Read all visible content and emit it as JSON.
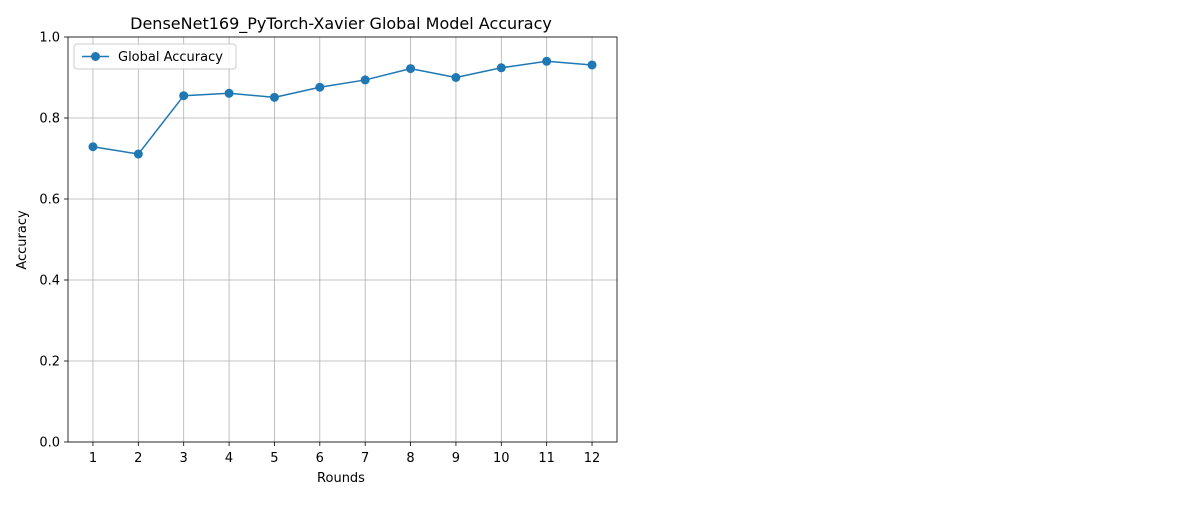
{
  "chart_data": {
    "type": "line",
    "title": "DenseNet169_PyTorch-Xavier Global Model Accuracy",
    "xlabel": "Rounds",
    "ylabel": "Accuracy",
    "x": [
      1,
      2,
      3,
      4,
      5,
      6,
      7,
      8,
      9,
      10,
      11,
      12
    ],
    "xticks": [
      "1",
      "2",
      "3",
      "4",
      "5",
      "6",
      "7",
      "8",
      "9",
      "10",
      "11",
      "12"
    ],
    "yticks": [
      "0.0",
      "0.2",
      "0.4",
      "0.6",
      "0.8",
      "1.0"
    ],
    "ylim": [
      0,
      1
    ],
    "grid": true,
    "legend_position": "upper-left",
    "series": [
      {
        "name": "Global Accuracy",
        "color": "#1f77b4",
        "marker": "circle",
        "values": [
          0.729,
          0.711,
          0.855,
          0.861,
          0.851,
          0.876,
          0.894,
          0.922,
          0.9,
          0.924,
          0.94,
          0.931
        ]
      }
    ]
  }
}
